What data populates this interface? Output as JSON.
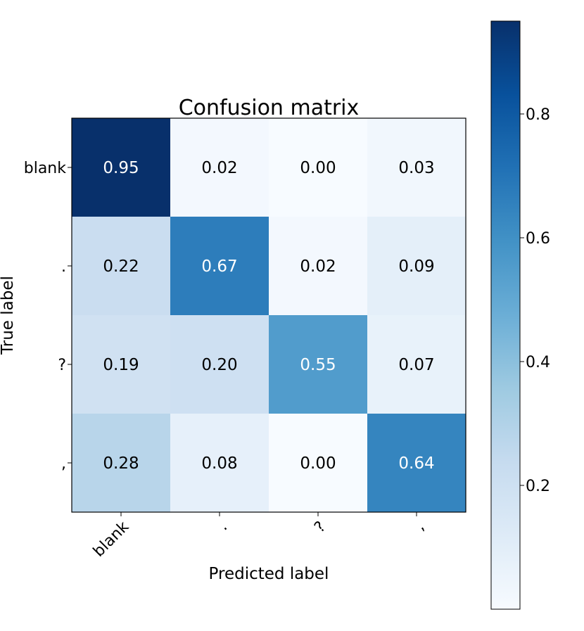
{
  "chart_data": {
    "type": "heatmap",
    "title": "Confusion matrix",
    "xlabel": "Predicted label",
    "ylabel": "True label",
    "x_categories": [
      "blank",
      ".",
      "?",
      ","
    ],
    "y_categories": [
      "blank",
      ".",
      "?",
      ","
    ],
    "values": [
      [
        0.95,
        0.02,
        0.0,
        0.03
      ],
      [
        0.22,
        0.67,
        0.02,
        0.09
      ],
      [
        0.19,
        0.2,
        0.55,
        0.07
      ],
      [
        0.28,
        0.08,
        0.0,
        0.64
      ]
    ],
    "value_labels": [
      [
        "0.95",
        "0.02",
        "0.00",
        "0.03"
      ],
      [
        "0.22",
        "0.67",
        "0.02",
        "0.09"
      ],
      [
        "0.19",
        "0.20",
        "0.55",
        "0.07"
      ],
      [
        "0.28",
        "0.08",
        "0.00",
        "0.64"
      ]
    ],
    "colormap": "Blues",
    "colorbar": {
      "range": [
        0.0,
        0.95
      ],
      "ticks": [
        0.2,
        0.4,
        0.6,
        0.8
      ],
      "tick_labels": [
        "0.2",
        "0.4",
        "0.6",
        "0.8"
      ]
    },
    "text_color_threshold": 0.475,
    "text_colors": {
      "light": "#ffffff",
      "dark": "#000000"
    }
  }
}
